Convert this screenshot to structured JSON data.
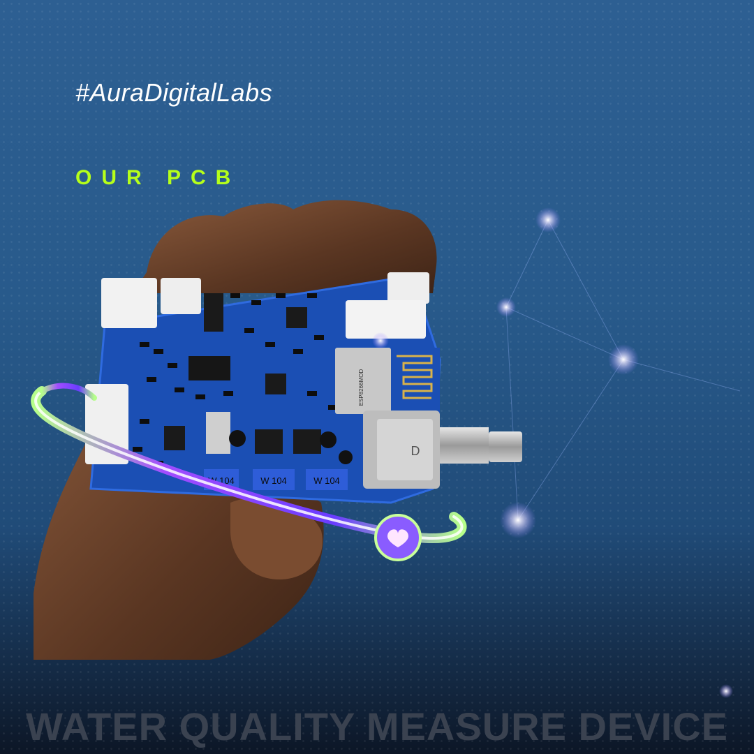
{
  "hashtag": "#AuraDigitalLabs",
  "subtitle": "OUR PCB",
  "footer_title": "WATER QUALITY MEASURE DEVICE",
  "pcb_labels": {
    "pot_1": "W 104",
    "pot_2": "W 104",
    "pot_3": "W 104",
    "module": "ESP8266MOD",
    "connector": "D"
  },
  "colors": {
    "background": "#285a8b",
    "accent": "#b6ff1a",
    "text": "#ffffff",
    "footer": "#3a4250",
    "pcb": "#1b4fb4"
  }
}
